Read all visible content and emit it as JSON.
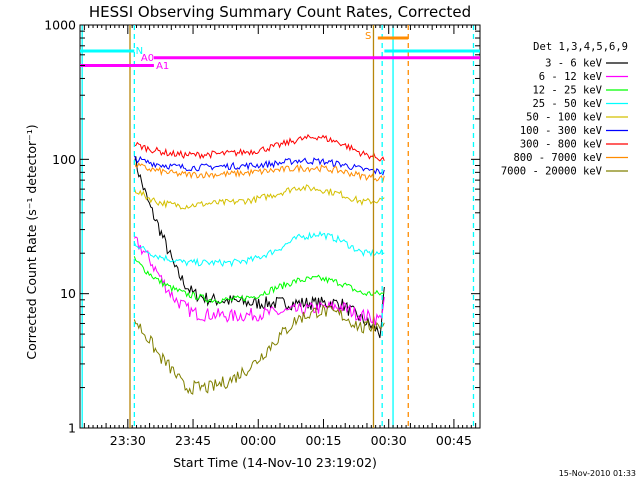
{
  "chart_data": {
    "type": "line",
    "title": "HESSI Observing Summary Count Rates, Corrected",
    "xlabel": "Start Time (14-Nov-10 23:19:02)",
    "ylabel": "Corrected Count Rate (s⁻¹ detector⁻¹)",
    "footer": "15-Nov-2010 01:33",
    "x_unit": "minutes after 14-Nov-10 23:19:02",
    "xlim": [
      0,
      92
    ],
    "ylim": [
      1,
      1000
    ],
    "yscale": "log",
    "x_ticks": [
      {
        "label": "23:30",
        "x": 11
      },
      {
        "label": "23:45",
        "x": 26
      },
      {
        "label": "00:00",
        "x": 41
      },
      {
        "label": "00:15",
        "x": 56
      },
      {
        "label": "00:30",
        "x": 71
      },
      {
        "label": "00:45",
        "x": 86
      }
    ],
    "y_ticks": [
      {
        "label": "1",
        "y": 1
      },
      {
        "label": "10",
        "y": 10
      },
      {
        "label": "100",
        "y": 100
      },
      {
        "label": "1000",
        "y": 1000
      }
    ],
    "legend_title": "Det 1,3,4,5,6,9",
    "legend_position": "right",
    "series": [
      {
        "name": "3 - 6 keV",
        "color": "#000000",
        "x": [
          12.5,
          14,
          16,
          18,
          20,
          22,
          24,
          26,
          28,
          30,
          35,
          40,
          45,
          50,
          55,
          60,
          62,
          64,
          66,
          68,
          69,
          70
        ],
        "y": [
          105,
          70,
          45,
          32,
          22,
          15,
          12,
          10,
          9.5,
          9,
          8.8,
          8.5,
          8.5,
          8.5,
          8.5,
          8.5,
          7.5,
          6.8,
          6,
          5.5,
          5,
          10
        ]
      },
      {
        "name": "6 - 12 keV",
        "color": "#ff00ff",
        "x": [
          12.5,
          14,
          16,
          18,
          20,
          22,
          24,
          26,
          28,
          30,
          35,
          40,
          45,
          50,
          55,
          60,
          62,
          64,
          66,
          68,
          69,
          70
        ],
        "y": [
          25,
          22,
          18,
          14,
          11,
          9,
          8,
          7.2,
          7,
          7,
          6.8,
          7,
          7.2,
          7.5,
          7.8,
          8,
          7.5,
          7,
          6.8,
          6.5,
          6.5,
          9
        ]
      },
      {
        "name": "12 - 25 keV",
        "color": "#00ff00",
        "x": [
          12.5,
          15,
          18,
          21,
          24,
          27,
          30,
          35,
          40,
          45,
          50,
          55,
          60,
          65,
          70
        ],
        "y": [
          18,
          15,
          12.5,
          11,
          10,
          9.5,
          9,
          9,
          9.5,
          11,
          12.5,
          13,
          12,
          10,
          10
        ]
      },
      {
        "name": "25 - 50 keV",
        "color": "#00ffff",
        "x": [
          12.5,
          15,
          18,
          21,
          24,
          27,
          30,
          35,
          40,
          45,
          50,
          55,
          60,
          65,
          70
        ],
        "y": [
          24,
          21,
          19,
          18,
          17,
          17,
          17,
          17,
          18,
          21,
          26,
          28,
          25,
          20,
          20
        ]
      },
      {
        "name": "50 - 100 keV",
        "color": "#d4c000",
        "x": [
          12.5,
          15,
          18,
          21,
          24,
          27,
          30,
          35,
          40,
          45,
          50,
          55,
          60,
          65,
          70
        ],
        "y": [
          60,
          53,
          48,
          46,
          45,
          46,
          47,
          48,
          50,
          55,
          62,
          60,
          55,
          48,
          50
        ]
      },
      {
        "name": "100 - 300 keV",
        "color": "#0000ff",
        "x": [
          12.5,
          15,
          18,
          21,
          24,
          27,
          30,
          35,
          40,
          45,
          50,
          55,
          60,
          65,
          70
        ],
        "y": [
          102,
          96,
          92,
          89,
          87,
          87,
          88,
          89,
          90,
          93,
          98,
          97,
          92,
          84,
          80
        ]
      },
      {
        "name": "300 - 800 keV",
        "color": "#ff0000",
        "x": [
          12.5,
          15,
          18,
          21,
          24,
          27,
          30,
          35,
          40,
          45,
          50,
          55,
          60,
          65,
          70
        ],
        "y": [
          130,
          122,
          115,
          110,
          108,
          108,
          109,
          111,
          115,
          125,
          140,
          148,
          132,
          110,
          100
        ]
      },
      {
        "name": "800 - 7000 keV",
        "color": "#ff8c00",
        "x": [
          12.5,
          15,
          18,
          21,
          24,
          27,
          30,
          35,
          40,
          45,
          50,
          55,
          60,
          65,
          70
        ],
        "y": [
          92,
          86,
          82,
          79,
          77,
          77,
          77,
          78,
          80,
          83,
          86,
          86,
          82,
          75,
          72
        ]
      },
      {
        "name": "7000 - 20000 keV",
        "color": "#808000",
        "x": [
          12.5,
          14,
          16,
          18,
          20,
          22,
          24,
          26,
          28,
          30,
          35,
          40,
          45,
          50,
          55,
          60,
          65,
          70
        ],
        "y": [
          6.5,
          5.5,
          4.5,
          3.5,
          3,
          2.5,
          2,
          2,
          2,
          2,
          2.3,
          3,
          4.5,
          6.5,
          7.5,
          7,
          5.5,
          6
        ]
      }
    ],
    "flags": {
      "legend": [
        {
          "label": "N",
          "color": "#00ffff"
        },
        {
          "label": "A0",
          "color": "#ff00ff"
        },
        {
          "label": "A1",
          "color": "#ff00ff"
        },
        {
          "label": "S",
          "color": "#ff8c00"
        }
      ],
      "bars": [
        {
          "label": "N",
          "color": "#00ffff",
          "y": 640,
          "x_start": 0,
          "x_end": 12.5
        },
        {
          "label": "N",
          "color": "#00ffff",
          "y": 640,
          "x_start": 70,
          "x_end": 92
        },
        {
          "label": "A1",
          "color": "#ff00ff",
          "y": 500,
          "x_start": 0,
          "x_end": 17
        },
        {
          "label": "A0",
          "color": "#ff00ff",
          "y": 570,
          "x_start": 17,
          "x_end": 92
        },
        {
          "label": "S",
          "color": "#ff8c00",
          "y": 800,
          "x_start": 68.5,
          "x_end": 75.5
        }
      ],
      "vlines": [
        {
          "x": 0.5,
          "color": "#00ffff",
          "style": "solid"
        },
        {
          "x": 12.5,
          "color": "#00ffff",
          "style": "dashed"
        },
        {
          "x": 11.5,
          "color": "#b8860b",
          "style": "solid"
        },
        {
          "x": 67.5,
          "color": "#b8860b",
          "style": "solid"
        },
        {
          "x": 69.5,
          "color": "#00ffff",
          "style": "dashed"
        },
        {
          "x": 72,
          "color": "#00ffff",
          "style": "solid"
        },
        {
          "x": 75.5,
          "color": "#ff8c00",
          "style": "dashed"
        },
        {
          "x": 90.5,
          "color": "#00ffff",
          "style": "dashed"
        }
      ]
    },
    "grid": false
  }
}
